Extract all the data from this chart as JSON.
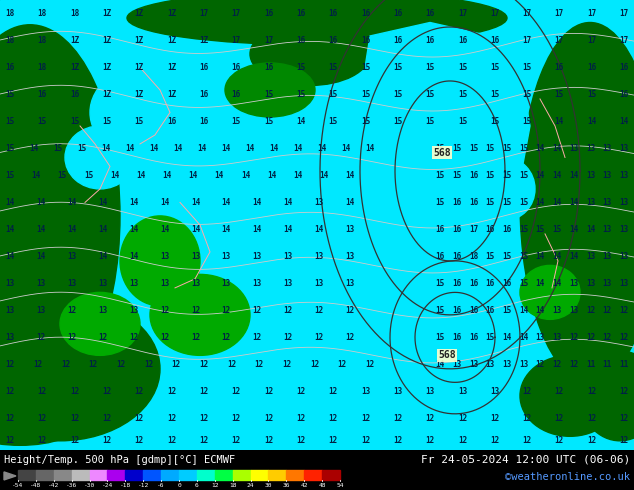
{
  "title_left": "Height/Temp. 500 hPa [gdmp][°C] ECMWF",
  "title_right": "Fr 24-05-2024 12:00 UTC (06-06)",
  "credit": "©weatheronline.co.uk",
  "colorbar_ticks": [
    -54,
    -48,
    -42,
    -36,
    -30,
    -24,
    -18,
    -12,
    -6,
    0,
    6,
    12,
    18,
    24,
    30,
    36,
    42,
    48,
    54
  ],
  "colorbar_colors": [
    "#636363",
    "#888888",
    "#aaaaaa",
    "#cccccc",
    "#dd88ff",
    "#aa00ff",
    "#0000dd",
    "#0066ff",
    "#00aaff",
    "#00ddff",
    "#00ffcc",
    "#00ff00",
    "#aaff00",
    "#ffff00",
    "#ffcc00",
    "#ff8800",
    "#ff4400",
    "#cc0000",
    "#880000"
  ],
  "bg_color": "#000000",
  "legend_bg": "#000000",
  "fig_width": 6.34,
  "fig_height": 4.9,
  "dpi": 100,
  "map_colors": {
    "cyan_sea": "#00e8ff",
    "dark_green_land": "#006600",
    "mid_green": "#008800",
    "light_green": "#00aa00",
    "contour_line": "#cccccc",
    "coast_pink": "#ffaaaa",
    "text_dark": "#002244"
  }
}
